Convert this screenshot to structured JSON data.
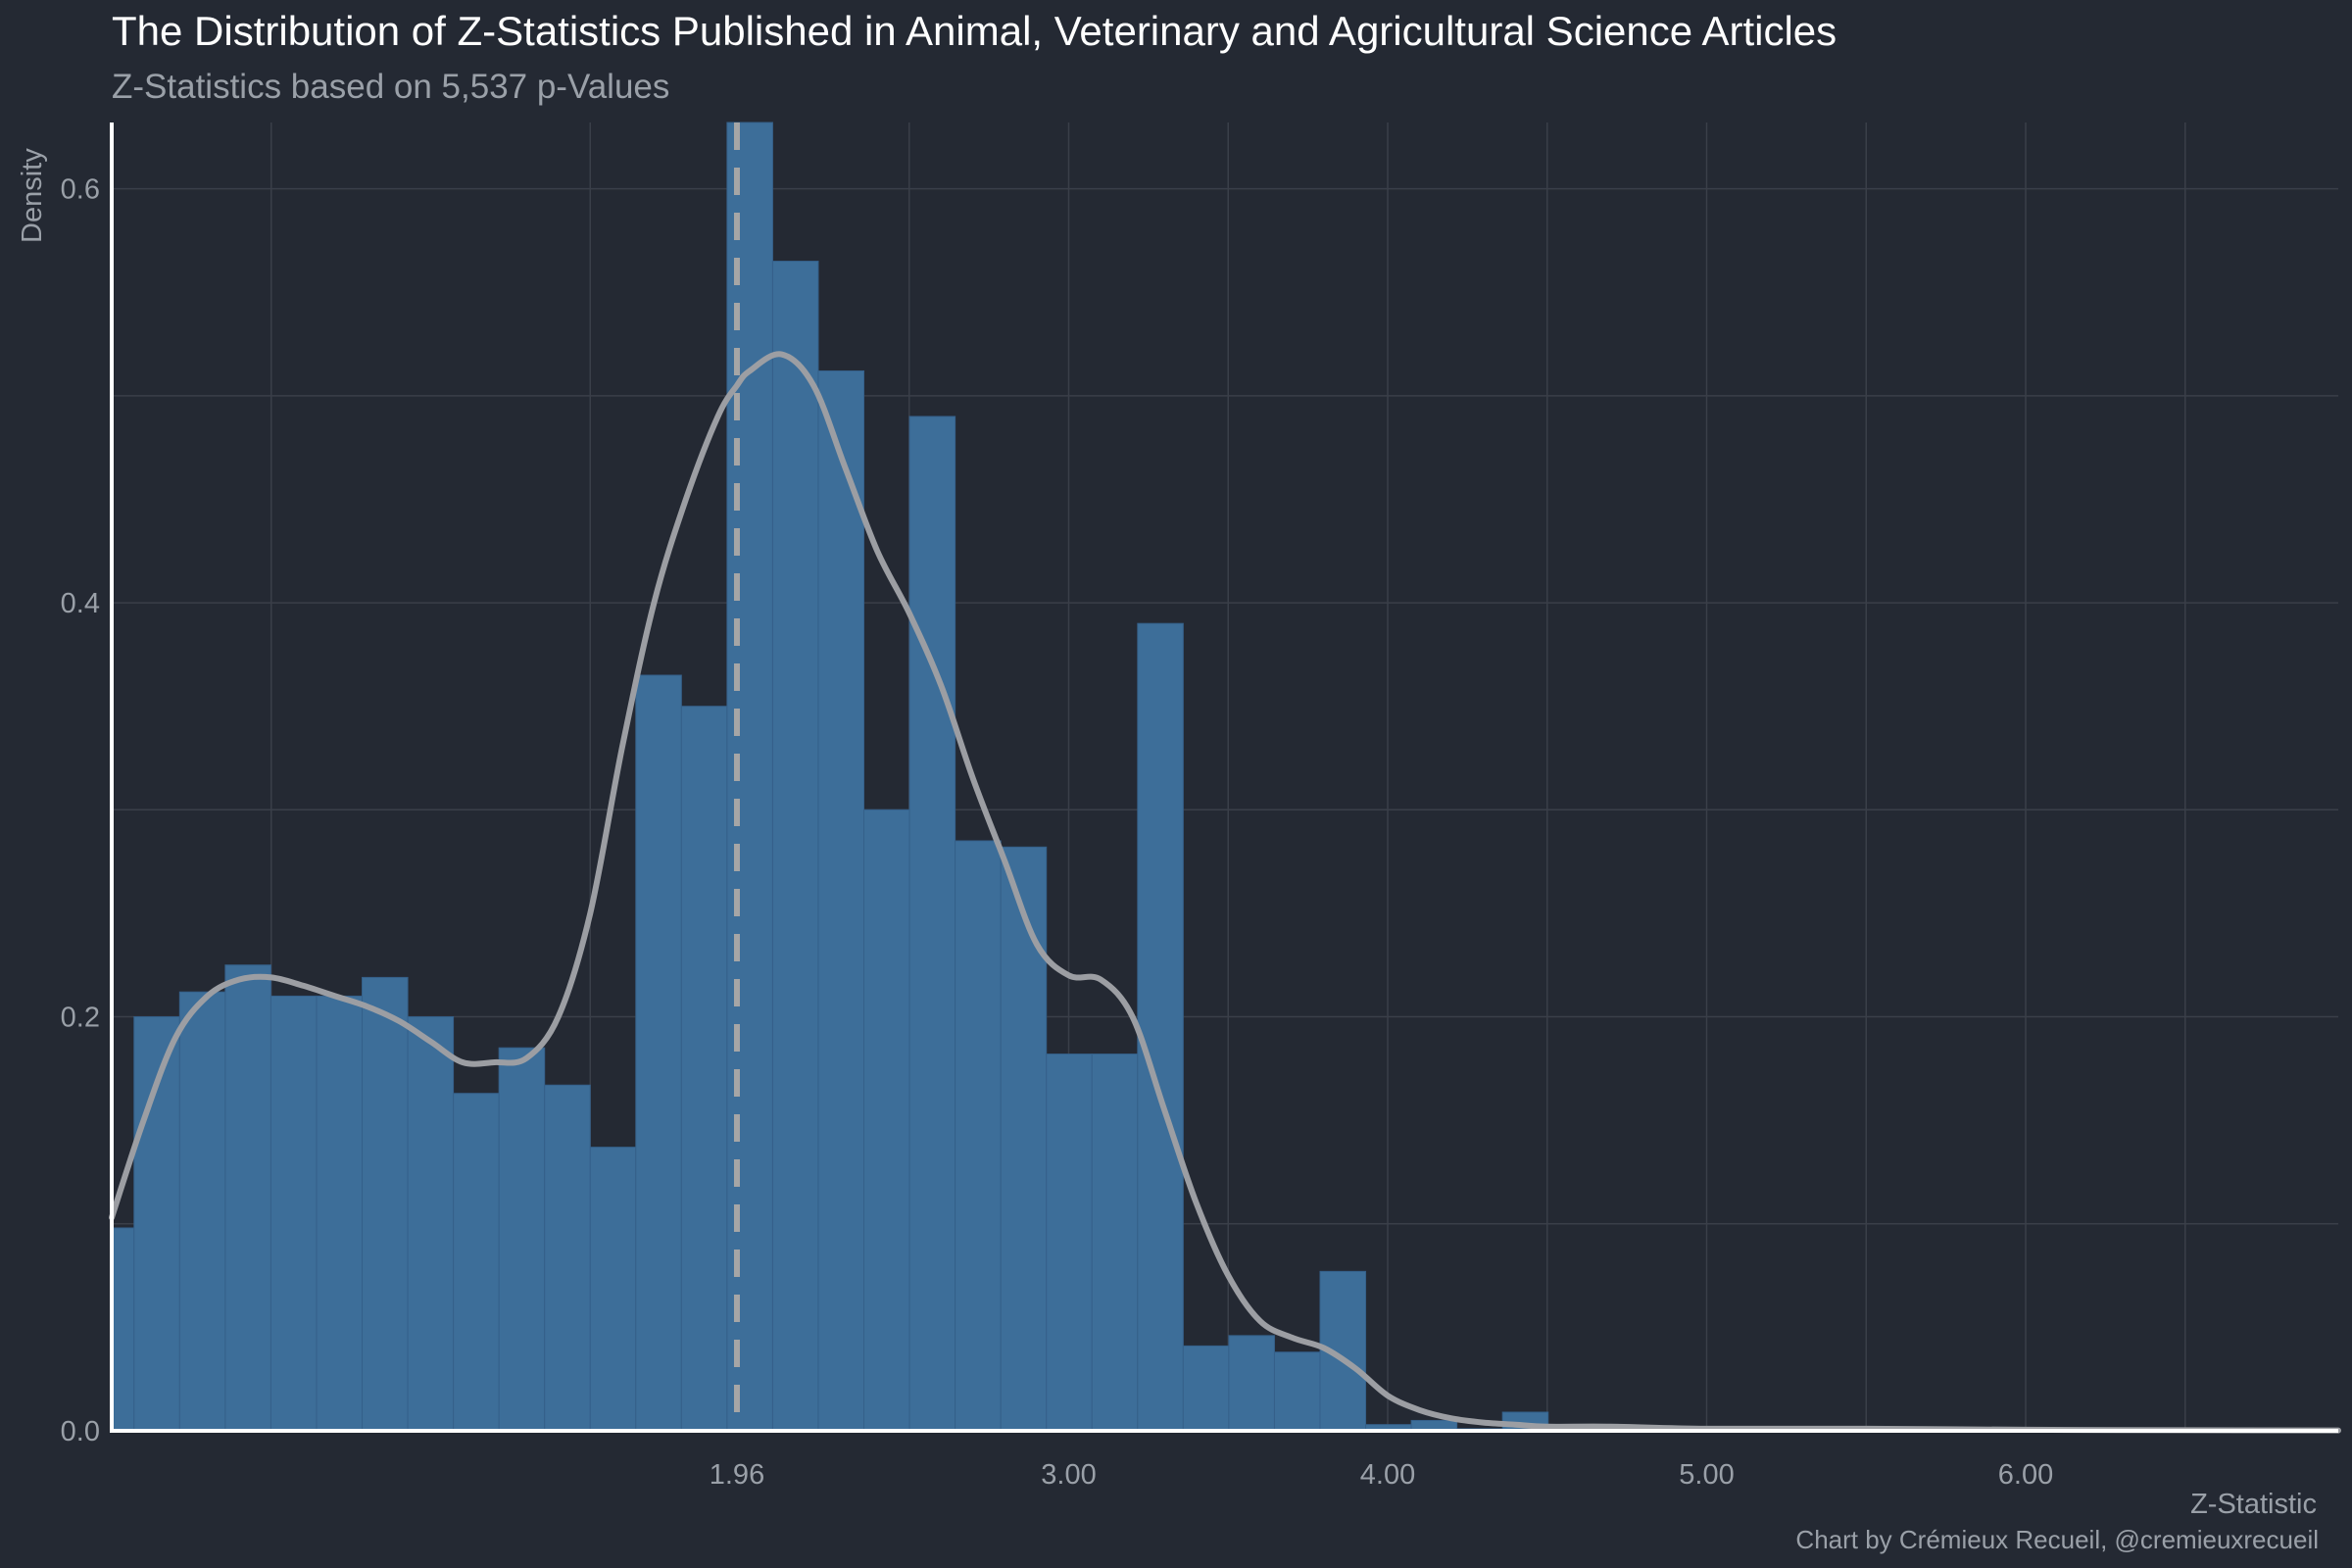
{
  "colors": {
    "background": "#242933",
    "bar_fill": "#3d6e99",
    "bar_stroke": "#35608a",
    "density_line": "#9c9ea3",
    "reference_line": "#a6a6a6",
    "grid": "#3a3f49",
    "axis": "#ffffff"
  },
  "chart_data": {
    "type": "bar",
    "subtype": "histogram-with-density",
    "title": "The Distribution of Z-Statistics Published in Animal, Veterinary and Agricultural Science Articles",
    "subtitle": "Z-Statistics based on 5,537 p-Values",
    "xlabel": "Z-Statistic",
    "ylabel": "Density",
    "caption": "Chart by Crémieux Recueil, @cremieuxrecueil",
    "xlim": [
      0,
      6.98
    ],
    "ylim": [
      0,
      0.632
    ],
    "x_ticks": [
      {
        "value": 1.96,
        "label": "1.96"
      },
      {
        "value": 3.0,
        "label": "3.00"
      },
      {
        "value": 4.0,
        "label": "4.00"
      },
      {
        "value": 5.0,
        "label": "5.00"
      },
      {
        "value": 6.0,
        "label": "6.00"
      }
    ],
    "y_ticks": [
      {
        "value": 0.0,
        "label": "0.0"
      },
      {
        "value": 0.2,
        "label": "0.2"
      },
      {
        "value": 0.4,
        "label": "0.4"
      },
      {
        "value": 0.6,
        "label": "0.6"
      }
    ],
    "grid": true,
    "bin_width": 0.143,
    "bins": [
      {
        "x0": 0.0,
        "x1": 0.07,
        "density": 0.098
      },
      {
        "x0": 0.07,
        "x1": 0.213,
        "density": 0.2
      },
      {
        "x0": 0.213,
        "x1": 0.356,
        "density": 0.212
      },
      {
        "x0": 0.356,
        "x1": 0.499,
        "density": 0.225
      },
      {
        "x0": 0.499,
        "x1": 0.642,
        "density": 0.21
      },
      {
        "x0": 0.642,
        "x1": 0.785,
        "density": 0.21
      },
      {
        "x0": 0.785,
        "x1": 0.928,
        "density": 0.219
      },
      {
        "x0": 0.928,
        "x1": 1.071,
        "density": 0.2
      },
      {
        "x0": 1.071,
        "x1": 1.214,
        "density": 0.163
      },
      {
        "x0": 1.214,
        "x1": 1.357,
        "density": 0.185
      },
      {
        "x0": 1.357,
        "x1": 1.5,
        "density": 0.167
      },
      {
        "x0": 1.5,
        "x1": 1.643,
        "density": 0.137
      },
      {
        "x0": 1.643,
        "x1": 1.786,
        "density": 0.365
      },
      {
        "x0": 1.786,
        "x1": 1.929,
        "density": 0.35
      },
      {
        "x0": 1.929,
        "x1": 2.072,
        "density": 0.632
      },
      {
        "x0": 2.072,
        "x1": 2.215,
        "density": 0.565
      },
      {
        "x0": 2.215,
        "x1": 2.358,
        "density": 0.512
      },
      {
        "x0": 2.358,
        "x1": 2.501,
        "density": 0.3
      },
      {
        "x0": 2.501,
        "x1": 2.644,
        "density": 0.49
      },
      {
        "x0": 2.644,
        "x1": 2.787,
        "density": 0.285
      },
      {
        "x0": 2.787,
        "x1": 2.93,
        "density": 0.282
      },
      {
        "x0": 2.93,
        "x1": 3.073,
        "density": 0.182
      },
      {
        "x0": 3.073,
        "x1": 3.216,
        "density": 0.182
      },
      {
        "x0": 3.216,
        "x1": 3.359,
        "density": 0.39
      },
      {
        "x0": 3.359,
        "x1": 3.502,
        "density": 0.041
      },
      {
        "x0": 3.502,
        "x1": 3.645,
        "density": 0.046
      },
      {
        "x0": 3.645,
        "x1": 3.788,
        "density": 0.038
      },
      {
        "x0": 3.788,
        "x1": 3.931,
        "density": 0.077
      },
      {
        "x0": 3.931,
        "x1": 4.074,
        "density": 0.003
      },
      {
        "x0": 4.074,
        "x1": 4.217,
        "density": 0.005
      },
      {
        "x0": 4.217,
        "x1": 4.36,
        "density": 0.001
      },
      {
        "x0": 4.36,
        "x1": 4.503,
        "density": 0.009
      },
      {
        "x0": 4.503,
        "x1": 4.646,
        "density": 0.001
      }
    ],
    "density_curve": {
      "x": [
        0.0,
        0.1,
        0.2,
        0.3,
        0.4,
        0.5,
        0.6,
        0.7,
        0.8,
        0.9,
        1.0,
        1.1,
        1.2,
        1.3,
        1.4,
        1.5,
        1.6,
        1.7,
        1.8,
        1.9,
        1.96,
        2.0,
        2.1,
        2.2,
        2.3,
        2.4,
        2.5,
        2.6,
        2.7,
        2.8,
        2.9,
        3.0,
        3.1,
        3.2,
        3.3,
        3.4,
        3.5,
        3.6,
        3.7,
        3.8,
        3.9,
        4.0,
        4.1,
        4.2,
        4.3,
        4.4,
        4.5,
        4.7,
        5.0,
        5.5,
        6.0,
        6.5,
        6.98
      ],
      "y": [
        0.103,
        0.15,
        0.19,
        0.21,
        0.218,
        0.219,
        0.215,
        0.21,
        0.205,
        0.198,
        0.188,
        0.178,
        0.178,
        0.18,
        0.2,
        0.25,
        0.33,
        0.4,
        0.45,
        0.49,
        0.505,
        0.512,
        0.52,
        0.505,
        0.465,
        0.425,
        0.395,
        0.36,
        0.315,
        0.275,
        0.235,
        0.22,
        0.218,
        0.2,
        0.155,
        0.11,
        0.075,
        0.053,
        0.045,
        0.04,
        0.03,
        0.017,
        0.01,
        0.006,
        0.004,
        0.003,
        0.002,
        0.002,
        0.001,
        0.001,
        0.0005,
        0.0003,
        0.0002
      ]
    },
    "reference_line": {
      "x": 1.96,
      "style": "dashed"
    }
  }
}
